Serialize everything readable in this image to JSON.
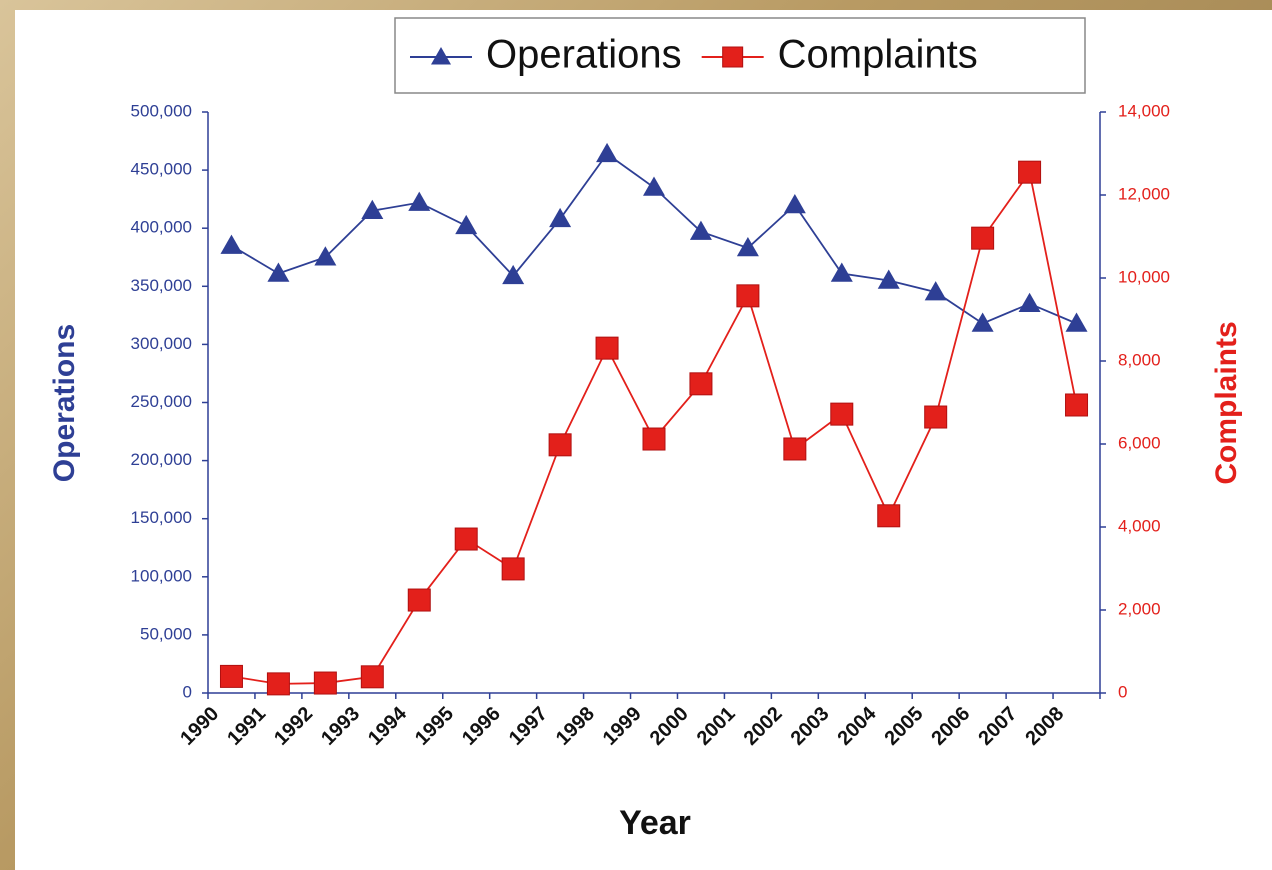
{
  "chart_data": {
    "type": "line",
    "xlabel": "Year",
    "ylabel": "Operations",
    "y2label": "Complaints",
    "categories": [
      "1990",
      "1991",
      "1992",
      "1993",
      "1994",
      "1995",
      "1996",
      "1997",
      "1998",
      "1999",
      "2000",
      "2001",
      "2002",
      "2003",
      "2004",
      "2005",
      "2006",
      "2007",
      "2008"
    ],
    "series": [
      {
        "name": "Operations",
        "color": "#2e3f95",
        "marker": "triangle",
        "values": [
          385000,
          361000,
          375000,
          415000,
          422000,
          402000,
          359000,
          408000,
          464000,
          435000,
          397000,
          383000,
          420000,
          361000,
          355000,
          345000,
          318000,
          335000,
          318000
        ]
      },
      {
        "name": "Complaints",
        "color": "#e3201b",
        "marker": "square",
        "axis": "y2",
        "values": [
          400,
          220,
          240,
          390,
          2240,
          3710,
          2990,
          5980,
          8310,
          6120,
          7450,
          9570,
          5880,
          6720,
          4270,
          6650,
          10960,
          12550,
          6940
        ]
      }
    ],
    "ylim": [
      0,
      500000
    ],
    "yticks": [
      0,
      {
        "value": 50000,
        "label": "50,000"
      },
      {
        "value": 100000,
        "label": "100,000"
      },
      {
        "value": 150000,
        "label": "150,000"
      },
      {
        "value": 200000,
        "label": "200,000"
      },
      {
        "value": 250000,
        "label": "250,000"
      },
      {
        "value": 300000,
        "label": "300,000"
      },
      {
        "value": 350000,
        "label": "350,000"
      },
      {
        "value": 400000,
        "label": "400,000"
      },
      {
        "value": 450000,
        "label": "450,000"
      },
      {
        "value": 500000,
        "label": "500,000"
      }
    ],
    "y2lim": [
      0,
      14000
    ],
    "y2ticks": [
      0,
      {
        "value": 2000,
        "label": "2,000"
      },
      {
        "value": 4000,
        "label": "4,000"
      },
      {
        "value": 6000,
        "label": "6,000"
      },
      {
        "value": 8000,
        "label": "8,000"
      },
      {
        "value": 10000,
        "label": "10,000"
      },
      {
        "value": 12000,
        "label": "12,000"
      },
      {
        "value": 14000,
        "label": "14,000"
      }
    ],
    "legend": "top",
    "grid": false
  }
}
